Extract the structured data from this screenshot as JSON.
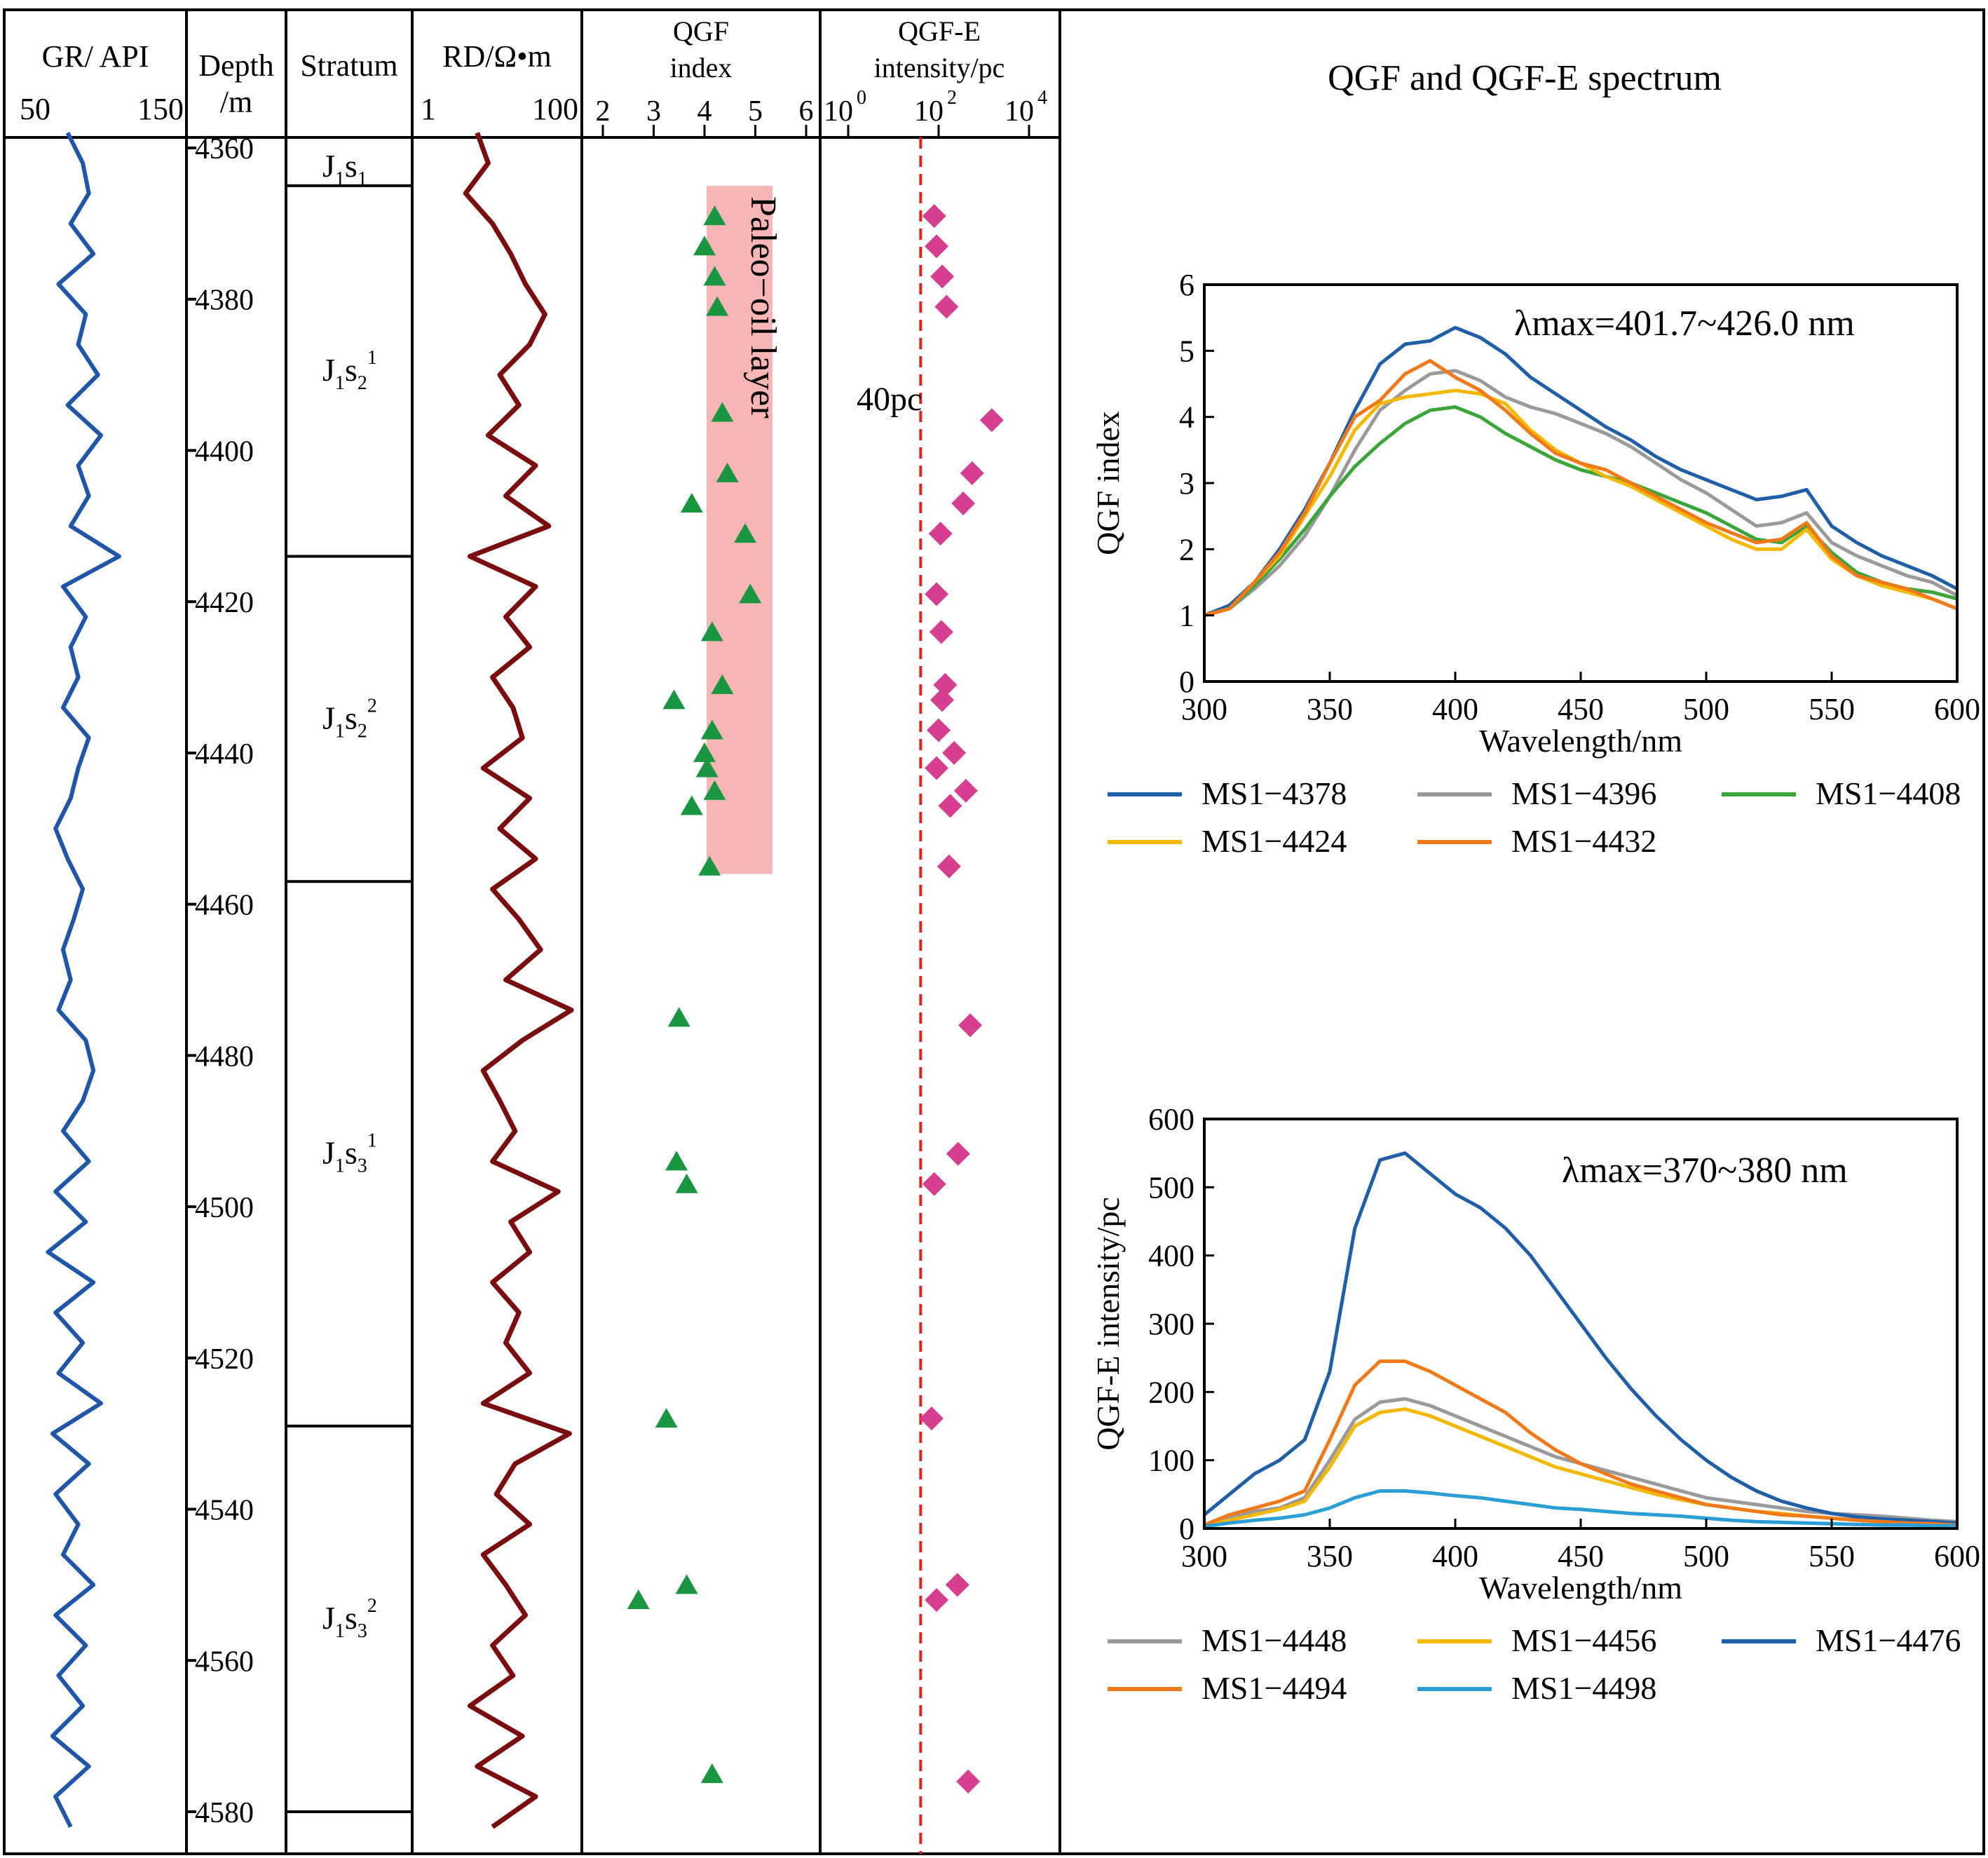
{
  "colors": {
    "gr_line": "#1f56a8",
    "rd_line": "#7a0e0e",
    "qgf_marker": "#1a9641",
    "qgfe_marker": "#d63e8f",
    "oil_layer": "#f7b5b5",
    "threshold_line": "#e0201f"
  },
  "headers": {
    "gr": {
      "title": "GR/ API",
      "tick_left": "50",
      "tick_right": "150"
    },
    "depth": {
      "line1": "Depth",
      "line2": "/m"
    },
    "stratum": {
      "title": "Stratum"
    },
    "rd": {
      "title": "RD/Ω•m",
      "tick_left": "1",
      "tick_right": "100"
    },
    "qgf": {
      "line1": "QGF",
      "line2": "index",
      "ticks": [
        "2",
        "3",
        "4",
        "5",
        "6"
      ]
    },
    "qgfe": {
      "line1": "QGF-E",
      "line2": "intensity/pc",
      "ticks": [
        "10",
        "10",
        "10"
      ],
      "tick_exponents": [
        "0",
        "2",
        "4"
      ]
    },
    "spectrum": {
      "title": "QGF and QGF-E spectrum"
    }
  },
  "depth_ticks": [
    "4360",
    "4380",
    "4400",
    "4420",
    "4440",
    "4460",
    "4480",
    "4500",
    "4520",
    "4540",
    "4560",
    "4580"
  ],
  "strata": [
    {
      "base": "J",
      "sub1": "1",
      "mid": "s",
      "sub2": "1",
      "sup": "",
      "top": 4360,
      "bottom": 4365
    },
    {
      "base": "J",
      "sub1": "1",
      "mid": "s",
      "sub2": "2",
      "sup": "1",
      "top": 4365,
      "bottom": 4414
    },
    {
      "base": "J",
      "sub1": "1",
      "mid": "s",
      "sub2": "2",
      "sup": "2",
      "top": 4414,
      "bottom": 4457
    },
    {
      "base": "J",
      "sub1": "1",
      "mid": "s",
      "sub2": "3",
      "sup": "1",
      "top": 4457,
      "bottom": 4529
    },
    {
      "base": "J",
      "sub1": "1",
      "mid": "s",
      "sub2": "3",
      "sup": "2",
      "top": 4529,
      "bottom": 4580
    }
  ],
  "annotations": {
    "paleo_oil_layer": "Paleo−oil layer",
    "threshold": "40pc"
  },
  "chart_data": [
    {
      "type": "line",
      "name": "GR log",
      "x_range": [
        50,
        150
      ],
      "depth_range": [
        4358,
        4583
      ],
      "depth": [
        4358,
        4362,
        4366,
        4370,
        4374,
        4378,
        4382,
        4386,
        4390,
        4394,
        4398,
        4402,
        4406,
        4410,
        4414,
        4418,
        4422,
        4426,
        4430,
        4434,
        4438,
        4442,
        4446,
        4450,
        4454,
        4458,
        4462,
        4466,
        4470,
        4474,
        4478,
        4482,
        4486,
        4490,
        4494,
        4498,
        4502,
        4506,
        4510,
        4514,
        4518,
        4522,
        4526,
        4530,
        4534,
        4538,
        4542,
        4546,
        4550,
        4554,
        4558,
        4562,
        4566,
        4570,
        4574,
        4578,
        4582
      ],
      "values": [
        78,
        88,
        92,
        80,
        95,
        72,
        90,
        85,
        98,
        78,
        100,
        85,
        92,
        80,
        112,
        75,
        90,
        80,
        85,
        75,
        92,
        85,
        80,
        70,
        78,
        88,
        82,
        75,
        80,
        72,
        90,
        95,
        88,
        75,
        92,
        70,
        90,
        65,
        95,
        70,
        88,
        72,
        100,
        68,
        92,
        70,
        85,
        75,
        95,
        70,
        90,
        72,
        88,
        68,
        92,
        70,
        80
      ]
    },
    {
      "type": "line",
      "name": "RD log",
      "x_range": [
        1,
        100
      ],
      "x_scale": "log",
      "depth_range": [
        4358,
        4583
      ],
      "depth": [
        4358,
        4362,
        4366,
        4370,
        4374,
        4378,
        4382,
        4386,
        4390,
        4394,
        4398,
        4402,
        4406,
        4410,
        4414,
        4418,
        4422,
        4426,
        4430,
        4434,
        4438,
        4442,
        4446,
        4450,
        4454,
        4458,
        4462,
        4466,
        4470,
        4474,
        4478,
        4482,
        4486,
        4490,
        4494,
        4498,
        4502,
        4506,
        4510,
        4514,
        4518,
        4522,
        4526,
        4530,
        4534,
        4538,
        4542,
        4546,
        4550,
        4554,
        4558,
        4562,
        4566,
        4570,
        4574,
        4578,
        4582
      ],
      "values": [
        5,
        7,
        3.5,
        8,
        14,
        22,
        40,
        25,
        10,
        18,
        7,
        30,
        12,
        45,
        4,
        30,
        12,
        25,
        8,
        15,
        20,
        6,
        25,
        10,
        30,
        8,
        18,
        35,
        12,
        90,
        20,
        6,
        10,
        16,
        8,
        60,
        14,
        25,
        8,
        18,
        12,
        25,
        6,
        85,
        16,
        9,
        25,
        6,
        12,
        22,
        8,
        15,
        4,
        20,
        5,
        30,
        8
      ]
    },
    {
      "type": "scatter",
      "name": "QGF index",
      "x_range": [
        1.5,
        6.5
      ],
      "depth": [
        4369,
        4373,
        4377,
        4381,
        4395,
        4403,
        4407,
        4411,
        4419,
        4424,
        4431,
        4433,
        4437,
        4440,
        4442,
        4445,
        4447,
        4455,
        4475,
        4494,
        4497,
        4528,
        4550,
        4552,
        4575
      ],
      "values": [
        4.2,
        4.0,
        4.2,
        4.25,
        4.35,
        4.45,
        3.75,
        4.8,
        4.9,
        4.15,
        4.35,
        3.4,
        4.15,
        4.0,
        4.05,
        4.2,
        3.75,
        4.1,
        3.5,
        3.45,
        3.65,
        3.25,
        3.65,
        2.7,
        4.15
      ]
    },
    {
      "type": "scatter",
      "name": "QGF-E intensity",
      "x_range": [
        0.3,
        10000
      ],
      "x_scale": "log",
      "threshold": 40,
      "depth": [
        4369,
        4373,
        4377,
        4381,
        4396,
        4403,
        4407,
        4411,
        4419,
        4424,
        4431,
        4433,
        4437,
        4440,
        4442,
        4445,
        4447,
        4455,
        4476,
        4493,
        4497,
        4528,
        4550,
        4552,
        4576
      ],
      "values": [
        80,
        90,
        120,
        150,
        1500,
        550,
        350,
        110,
        90,
        115,
        140,
        120,
        100,
        220,
        90,
        400,
        180,
        170,
        500,
        270,
        80,
        70,
        260,
        90,
        450
      ]
    },
    {
      "type": "line",
      "name": "QGF spectrum",
      "x": [
        300,
        310,
        320,
        330,
        340,
        350,
        360,
        370,
        380,
        390,
        400,
        410,
        420,
        430,
        440,
        450,
        460,
        470,
        480,
        490,
        500,
        510,
        520,
        530,
        540,
        550,
        560,
        570,
        580,
        590,
        600
      ],
      "xlabel": "Wavelength/nm",
      "ylabel": "QGF index",
      "xlim": [
        300,
        600
      ],
      "ylim": [
        0,
        6
      ],
      "annotation": "λmax=401.7~426.0 nm",
      "legend": "below",
      "series": [
        {
          "name": "MS1−4378",
          "color": "#1f5fa8",
          "values": [
            1.0,
            1.15,
            1.5,
            2.0,
            2.6,
            3.3,
            4.1,
            4.8,
            5.1,
            5.15,
            5.35,
            5.2,
            4.95,
            4.6,
            4.35,
            4.1,
            3.85,
            3.65,
            3.4,
            3.2,
            3.05,
            2.9,
            2.75,
            2.8,
            2.9,
            2.35,
            2.1,
            1.9,
            1.75,
            1.6,
            1.4
          ]
        },
        {
          "name": "MS1−4396",
          "color": "#9a9a9a",
          "values": [
            1.0,
            1.1,
            1.4,
            1.75,
            2.2,
            2.8,
            3.5,
            4.1,
            4.4,
            4.65,
            4.7,
            4.55,
            4.3,
            4.15,
            4.05,
            3.9,
            3.75,
            3.55,
            3.3,
            3.05,
            2.85,
            2.6,
            2.35,
            2.4,
            2.55,
            2.1,
            1.9,
            1.75,
            1.6,
            1.5,
            1.3
          ]
        },
        {
          "name": "MS1−4408",
          "color": "#3aa639",
          "values": [
            1.0,
            1.1,
            1.45,
            1.85,
            2.3,
            2.8,
            3.25,
            3.6,
            3.9,
            4.1,
            4.15,
            4.0,
            3.75,
            3.55,
            3.35,
            3.2,
            3.1,
            3.0,
            2.85,
            2.7,
            2.55,
            2.35,
            2.15,
            2.1,
            2.35,
            1.95,
            1.65,
            1.5,
            1.4,
            1.35,
            1.25
          ]
        },
        {
          "name": "MS1−4424",
          "color": "#f5b800",
          "values": [
            1.0,
            1.1,
            1.5,
            1.9,
            2.5,
            3.1,
            3.8,
            4.2,
            4.3,
            4.35,
            4.4,
            4.35,
            4.2,
            3.8,
            3.5,
            3.3,
            3.1,
            2.95,
            2.75,
            2.55,
            2.35,
            2.15,
            2.0,
            2.0,
            2.3,
            1.85,
            1.6,
            1.45,
            1.35,
            1.25,
            1.1
          ]
        },
        {
          "name": "MS1−4432",
          "color": "#f07a1a",
          "values": [
            1.0,
            1.1,
            1.5,
            1.95,
            2.55,
            3.3,
            4.0,
            4.25,
            4.65,
            4.85,
            4.6,
            4.4,
            4.1,
            3.75,
            3.45,
            3.3,
            3.2,
            3.0,
            2.8,
            2.6,
            2.4,
            2.25,
            2.1,
            2.15,
            2.4,
            1.9,
            1.6,
            1.5,
            1.4,
            1.25,
            1.1
          ]
        }
      ]
    },
    {
      "type": "line",
      "name": "QGF-E spectrum",
      "x": [
        300,
        310,
        320,
        330,
        340,
        350,
        360,
        370,
        380,
        390,
        400,
        410,
        420,
        430,
        440,
        450,
        460,
        470,
        480,
        490,
        500,
        510,
        520,
        530,
        540,
        550,
        560,
        570,
        580,
        590,
        600
      ],
      "xlabel": "Wavelength/nm",
      "ylabel": "QGF-E intensity/pc",
      "xlim": [
        300,
        600
      ],
      "ylim": [
        0,
        600
      ],
      "annotation": "λmax=370~380 nm",
      "legend": "below",
      "series": [
        {
          "name": "MS1−4448",
          "color": "#9a9a9a",
          "values": [
            5,
            15,
            25,
            30,
            45,
            100,
            160,
            185,
            190,
            180,
            165,
            150,
            135,
            120,
            105,
            95,
            85,
            75,
            65,
            55,
            45,
            40,
            35,
            30,
            25,
            22,
            20,
            18,
            15,
            12,
            10
          ]
        },
        {
          "name": "MS1−4456",
          "color": "#f5b800",
          "values": [
            5,
            12,
            20,
            28,
            40,
            90,
            150,
            170,
            175,
            165,
            150,
            135,
            120,
            105,
            90,
            80,
            70,
            60,
            50,
            42,
            35,
            30,
            25,
            22,
            18,
            15,
            12,
            10,
            8,
            7,
            5
          ]
        },
        {
          "name": "MS1−4476",
          "color": "#1f5fa8",
          "values": [
            20,
            50,
            80,
            100,
            130,
            230,
            440,
            540,
            550,
            520,
            490,
            470,
            440,
            400,
            350,
            300,
            250,
            205,
            165,
            130,
            100,
            75,
            55,
            40,
            30,
            22,
            17,
            14,
            12,
            10,
            8
          ]
        },
        {
          "name": "MS1−4494",
          "color": "#f07a1a",
          "values": [
            5,
            20,
            30,
            40,
            55,
            130,
            210,
            245,
            245,
            230,
            210,
            190,
            170,
            140,
            115,
            95,
            80,
            65,
            55,
            45,
            35,
            30,
            25,
            20,
            18,
            15,
            12,
            10,
            8,
            7,
            5
          ]
        },
        {
          "name": "MS1−4498",
          "color": "#2a9fd6",
          "values": [
            3,
            8,
            12,
            15,
            20,
            30,
            45,
            55,
            55,
            52,
            48,
            45,
            40,
            35,
            30,
            28,
            25,
            22,
            20,
            18,
            15,
            12,
            10,
            9,
            8,
            7,
            6,
            5,
            5,
            4,
            4
          ]
        }
      ]
    }
  ]
}
